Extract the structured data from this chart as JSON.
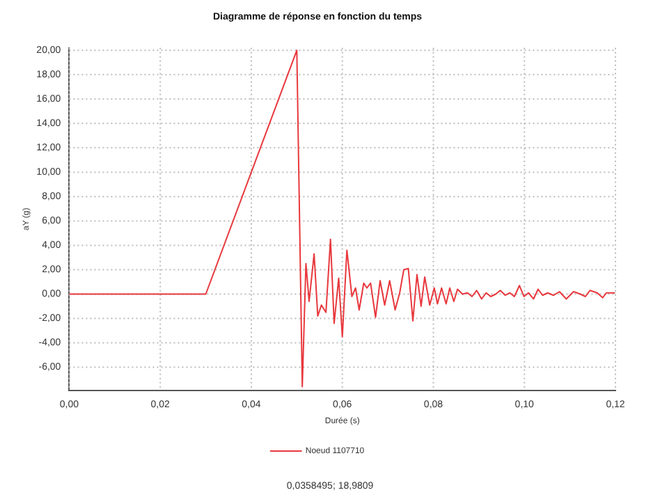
{
  "chart_data": {
    "type": "line",
    "title": "Diagramme de réponse en fonction du temps",
    "xlabel": "Durée (s)",
    "ylabel": "aY (g)",
    "xlim": [
      0,
      0.12
    ],
    "ylim": [
      -7.9,
      20.2
    ],
    "xticks": [
      {
        "value": 0,
        "label": "0,00"
      },
      {
        "value": 0.02,
        "label": "0,02"
      },
      {
        "value": 0.04,
        "label": "0,04"
      },
      {
        "value": 0.06,
        "label": "0,06"
      },
      {
        "value": 0.08,
        "label": "0,08"
      },
      {
        "value": 0.1,
        "label": "0,10"
      },
      {
        "value": 0.12,
        "label": "0,12"
      }
    ],
    "yticks": [
      {
        "value": -6,
        "label": "-6,00"
      },
      {
        "value": -4,
        "label": "-4,00"
      },
      {
        "value": -2,
        "label": "-2,00"
      },
      {
        "value": 0,
        "label": "0,00"
      },
      {
        "value": 2,
        "label": "2,00"
      },
      {
        "value": 4,
        "label": "4,00"
      },
      {
        "value": 6,
        "label": "6,00"
      },
      {
        "value": 8,
        "label": "8,00"
      },
      {
        "value": 10,
        "label": "10,00"
      },
      {
        "value": 12,
        "label": "12,00"
      },
      {
        "value": 14,
        "label": "14,00"
      },
      {
        "value": 16,
        "label": "16,00"
      },
      {
        "value": 18,
        "label": "18,00"
      },
      {
        "value": 20,
        "label": "20,00"
      }
    ],
    "grid": true,
    "legend": "bottom",
    "marker": "none",
    "line_style": "solid",
    "annotations": [
      "0,0358495; 18,9809"
    ],
    "series": [
      {
        "name": "Noeud 1107710",
        "color": "#e8383d",
        "x": [
          0,
          0.03,
          0.05,
          0.0512,
          0.052,
          0.0527,
          0.0538,
          0.0546,
          0.0554,
          0.0564,
          0.0574,
          0.0582,
          0.0592,
          0.06,
          0.061,
          0.0621,
          0.0629,
          0.0637,
          0.0647,
          0.0654,
          0.0662,
          0.0673,
          0.0683,
          0.0693,
          0.0704,
          0.0716,
          0.0726,
          0.0735,
          0.0745,
          0.0755,
          0.0764,
          0.0773,
          0.0781,
          0.0792,
          0.0802,
          0.0809,
          0.0818,
          0.0828,
          0.0836,
          0.0845,
          0.0853,
          0.0864,
          0.0875,
          0.0885,
          0.0895,
          0.0906,
          0.0916,
          0.0926,
          0.0937,
          0.0947,
          0.0958,
          0.0968,
          0.0978,
          0.0989,
          0.0999,
          0.1009,
          0.102,
          0.103,
          0.104,
          0.1051,
          0.1064,
          0.1077,
          0.1092,
          0.1108,
          0.1123,
          0.1134,
          0.1144,
          0.116,
          0.1172,
          0.118,
          0.1199
        ],
        "values": [
          0,
          0,
          20,
          -7.6,
          2.5,
          -0.6,
          3.3,
          -1.8,
          -0.9,
          -1.5,
          4.5,
          -2.4,
          1.3,
          -3.5,
          3.6,
          -0.2,
          0.5,
          -1.3,
          0.9,
          0.5,
          0.9,
          -1.9,
          1.1,
          -0.9,
          1.1,
          -1.3,
          0.1,
          2.0,
          2.1,
          -2.2,
          1.6,
          -1.0,
          1.4,
          -0.9,
          0.5,
          -0.8,
          0.5,
          -0.8,
          0.5,
          -0.6,
          0.4,
          0.0,
          0.1,
          -0.2,
          0.3,
          -0.4,
          0.1,
          -0.2,
          0.0,
          0.3,
          -0.1,
          0.1,
          -0.2,
          0.7,
          -0.2,
          0.1,
          -0.4,
          0.4,
          -0.1,
          0.1,
          -0.1,
          0.2,
          -0.4,
          0.2,
          0.0,
          -0.2,
          0.3,
          0.1,
          -0.3,
          0.1,
          0.1
        ]
      }
    ]
  }
}
